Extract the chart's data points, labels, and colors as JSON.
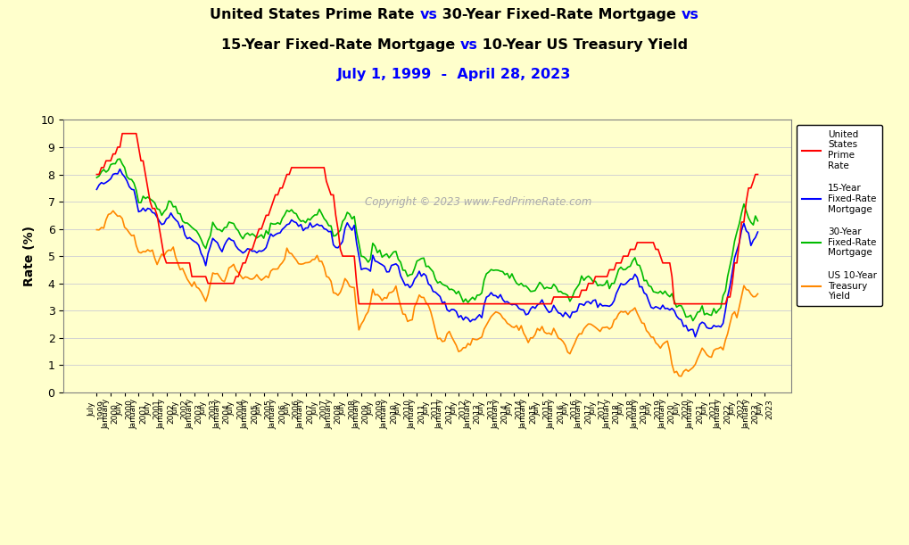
{
  "title_line1_parts": [
    [
      "United States Prime Rate ",
      "black"
    ],
    [
      "vs",
      "blue"
    ],
    [
      " 30-Year Fixed-Rate Mortgage ",
      "black"
    ],
    [
      "vs",
      "blue"
    ]
  ],
  "title_line2_parts": [
    [
      "15-Year Fixed-Rate Mortgage ",
      "black"
    ],
    [
      "vs",
      "blue"
    ],
    [
      " 10-Year US Treasury Yield",
      "black"
    ]
  ],
  "subtitle": "July 1, 1999  -  April 28, 2023",
  "ylabel": "Rate (%)",
  "copyright": "Copyright © 2023 www.FedPrimeRate.com",
  "background_color": "#FFFFCC",
  "prime_color": "#FF0000",
  "rate15_color": "#0000FF",
  "rate30_color": "#00BB00",
  "treasury_color": "#FF8800",
  "legend_prime": "United\nStates\nPrime\nRate",
  "legend_15": "15-Year\nFixed-Rate\nMortgage",
  "legend_30": "30-Year\nFixed-Rate\nMortgage",
  "legend_treasury": "US 10-Year\nTreasury\nYield",
  "ylim": [
    0,
    10
  ],
  "yticks": [
    0,
    1,
    2,
    3,
    4,
    5,
    6,
    7,
    8,
    9,
    10
  ]
}
